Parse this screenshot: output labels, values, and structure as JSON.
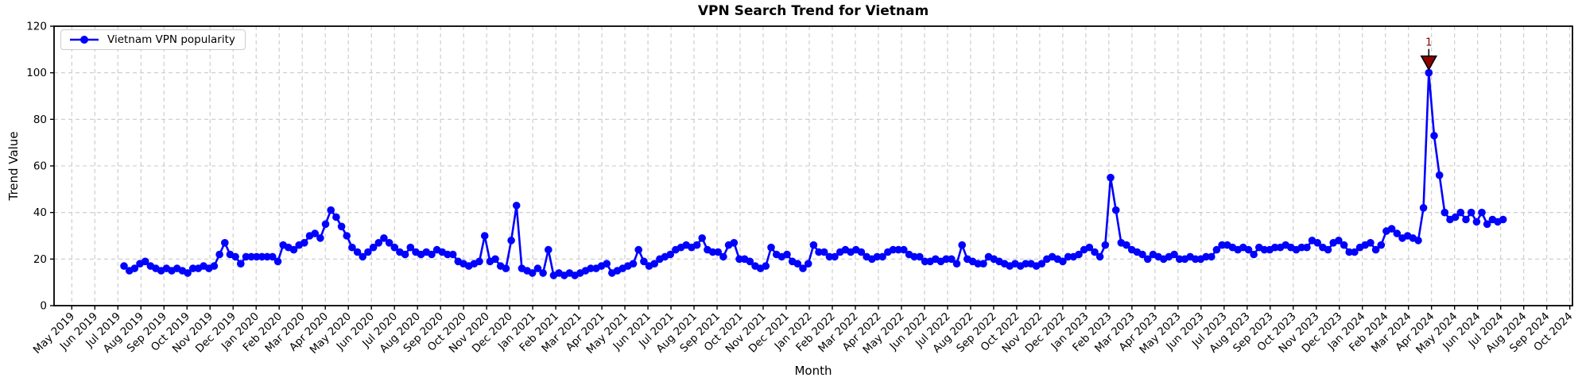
{
  "figure": {
    "title": "VPN Search Trend for Vietnam",
    "xlabel": "Month",
    "ylabel": "Trend Value",
    "legend": {
      "label": "Vietnam VPN popularity"
    },
    "background_color": "#ffffff",
    "grid_color": "#c9c9c9",
    "spine_color": "#000000"
  },
  "chart_data": {
    "type": "line",
    "title": "VPN Search Trend for Vietnam",
    "xlabel": "Month",
    "ylabel": "Trend Value",
    "ylim": [
      0,
      120
    ],
    "yticks": [
      0,
      20,
      40,
      60,
      80,
      100,
      120
    ],
    "grid": true,
    "grid_style": "dashed",
    "legend_position": "upper left",
    "x_tick_labels": [
      "May 2019",
      "Jun 2019",
      "Jul 2019",
      "Aug 2019",
      "Sep 2019",
      "Oct 2019",
      "Nov 2019",
      "Dec 2019",
      "Jan 2020",
      "Feb 2020",
      "Mar 2020",
      "Apr 2020",
      "May 2020",
      "Jun 2020",
      "Jul 2020",
      "Aug 2020",
      "Sep 2020",
      "Oct 2020",
      "Nov 2020",
      "Dec 2020",
      "Jan 2021",
      "Feb 2021",
      "Mar 2021",
      "Apr 2021",
      "May 2021",
      "Jun 2021",
      "Jul 2021",
      "Aug 2021",
      "Sep 2021",
      "Oct 2021",
      "Nov 2021",
      "Dec 2021",
      "Jan 2022",
      "Feb 2022",
      "Mar 2022",
      "Apr 2022",
      "May 2022",
      "Jun 2022",
      "Jul 2022",
      "Aug 2022",
      "Sep 2022",
      "Oct 2022",
      "Nov 2022",
      "Dec 2022",
      "Jan 2023",
      "Feb 2023",
      "Mar 2023",
      "Apr 2023",
      "May 2023",
      "Jun 2023",
      "Jul 2023",
      "Aug 2023",
      "Sep 2023",
      "Oct 2023",
      "Nov 2023",
      "Dec 2023",
      "Jan 2024",
      "Feb 2024",
      "Mar 2024",
      "Apr 2024",
      "May 2024",
      "Jun 2024",
      "Jul 2024",
      "Aug 2024",
      "Sep 2024",
      "Oct 2024"
    ],
    "series": [
      {
        "name": "Vietnam VPN popularity",
        "color": "#0000ff",
        "marker": "circle",
        "interval": "weekly",
        "first_point_approx": "early Jul 2019",
        "last_point_approx": "early Jul 2024",
        "values": [
          17,
          15,
          16,
          18,
          19,
          17,
          16,
          15,
          16,
          15,
          16,
          15,
          14,
          16,
          16,
          17,
          16,
          17,
          22,
          27,
          22,
          21,
          18,
          21,
          21,
          21,
          21,
          21,
          21,
          19,
          26,
          25,
          24,
          26,
          27,
          30,
          31,
          29,
          35,
          41,
          38,
          34,
          30,
          25,
          23,
          21,
          23,
          25,
          27,
          29,
          27,
          25,
          23,
          22,
          25,
          23,
          22,
          23,
          22,
          24,
          23,
          22,
          22,
          19,
          18,
          17,
          18,
          19,
          30,
          19,
          20,
          17,
          16,
          28,
          43,
          16,
          15,
          14,
          16,
          14,
          24,
          13,
          14,
          13,
          14,
          13,
          14,
          15,
          16,
          16,
          17,
          18,
          14,
          15,
          16,
          17,
          18,
          24,
          19,
          17,
          18,
          20,
          21,
          22,
          24,
          25,
          26,
          25,
          26,
          29,
          24,
          23,
          23,
          21,
          26,
          27,
          20,
          20,
          19,
          17,
          16,
          17,
          25,
          22,
          21,
          22,
          19,
          18,
          16,
          18,
          26,
          23,
          23,
          21,
          21,
          23,
          24,
          23,
          24,
          23,
          21,
          20,
          21,
          21,
          23,
          24,
          24,
          24,
          22,
          21,
          21,
          19,
          19,
          20,
          19,
          20,
          20,
          18,
          26,
          20,
          19,
          18,
          18,
          21,
          20,
          19,
          18,
          17,
          18,
          17,
          18,
          18,
          17,
          18,
          20,
          21,
          20,
          19,
          21,
          21,
          22,
          24,
          25,
          23,
          21,
          26,
          55,
          41,
          27,
          26,
          24,
          23,
          22,
          20,
          22,
          21,
          20,
          21,
          22,
          20,
          20,
          21,
          20,
          20,
          21,
          21,
          24,
          26,
          26,
          25,
          24,
          25,
          24,
          22,
          25,
          24,
          24,
          25,
          25,
          26,
          25,
          24,
          25,
          25,
          28,
          27,
          25,
          24,
          27,
          28,
          26,
          23,
          23,
          25,
          26,
          27,
          24,
          26,
          32,
          33,
          31,
          29,
          30,
          29,
          28,
          42,
          100,
          73,
          56,
          40,
          37,
          38,
          40,
          37,
          40,
          36,
          40,
          35,
          37,
          36,
          37
        ]
      }
    ],
    "annotations": [
      {
        "label": "1",
        "point_index": 246,
        "value": 100,
        "marker": "triangle-down",
        "marker_color": "#8b0000",
        "marker_edge_color": "#000000",
        "text_color": "#8b0000"
      }
    ]
  }
}
